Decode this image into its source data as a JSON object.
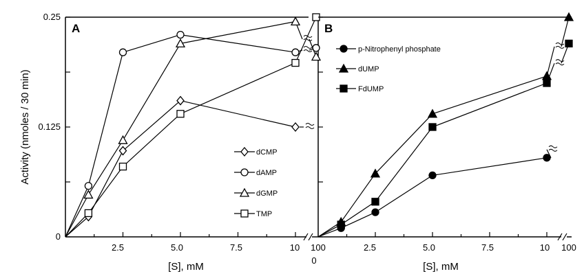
{
  "chart_data": [
    {
      "panel": "A",
      "type": "line",
      "ylabel": "Activity (nmoles / 30 min)",
      "xlabel": "[S], mM",
      "ylim": [
        0,
        0.25
      ],
      "y_ticks": [
        "0",
        "0.125",
        "0.25"
      ],
      "x_ticks": [
        "2.5",
        "5.0",
        "7.5",
        "10",
        "100"
      ],
      "x_origin_label": "0",
      "legend_position": "lower-right",
      "series": [
        {
          "name": "dCMP",
          "marker": "diamond-open",
          "x": [
            0,
            1,
            2.5,
            5,
            10
          ],
          "y": [
            0,
            0.023,
            0.098,
            0.155,
            0.125
          ],
          "break_at_end": true
        },
        {
          "name": "dAMP",
          "marker": "circle-open",
          "x": [
            0,
            1,
            2.5,
            5,
            10,
            100
          ],
          "y": [
            0,
            0.058,
            0.21,
            0.23,
            0.21,
            0.215
          ],
          "break_before_last": true
        },
        {
          "name": "dGMP",
          "marker": "triangle-open",
          "x": [
            0,
            1,
            2.5,
            5,
            10,
            100
          ],
          "y": [
            0,
            0.048,
            0.11,
            0.22,
            0.245,
            0.205
          ],
          "break_before_last": true
        },
        {
          "name": "TMP",
          "marker": "square-open",
          "x": [
            0,
            1,
            2.5,
            5,
            10,
            100
          ],
          "y": [
            0,
            0.027,
            0.08,
            0.14,
            0.198,
            0.25
          ]
        }
      ]
    },
    {
      "panel": "B",
      "type": "line",
      "xlabel": "[S], mM",
      "ylim": [
        0,
        0.25
      ],
      "x_ticks": [
        "2.5",
        "5.0",
        "7.5",
        "10",
        "100"
      ],
      "legend_position": "top-left",
      "series": [
        {
          "name": "p-Nitrophenyl phosphate",
          "marker": "circle-filled",
          "x": [
            0,
            1,
            2.5,
            5,
            10
          ],
          "y": [
            0,
            0.01,
            0.028,
            0.07,
            0.09
          ],
          "break_at_end": true
        },
        {
          "name": "dUMP",
          "marker": "triangle-filled",
          "x": [
            0,
            1,
            2.5,
            5,
            10,
            100
          ],
          "y": [
            0,
            0.017,
            0.072,
            0.14,
            0.183,
            0.25
          ],
          "break_before_last": true
        },
        {
          "name": "FdUMP",
          "marker": "square-filled",
          "x": [
            0,
            1,
            2.5,
            5,
            10,
            100
          ],
          "y": [
            0,
            0.014,
            0.04,
            0.125,
            0.175,
            0.22
          ],
          "break_before_last": true
        }
      ]
    }
  ]
}
